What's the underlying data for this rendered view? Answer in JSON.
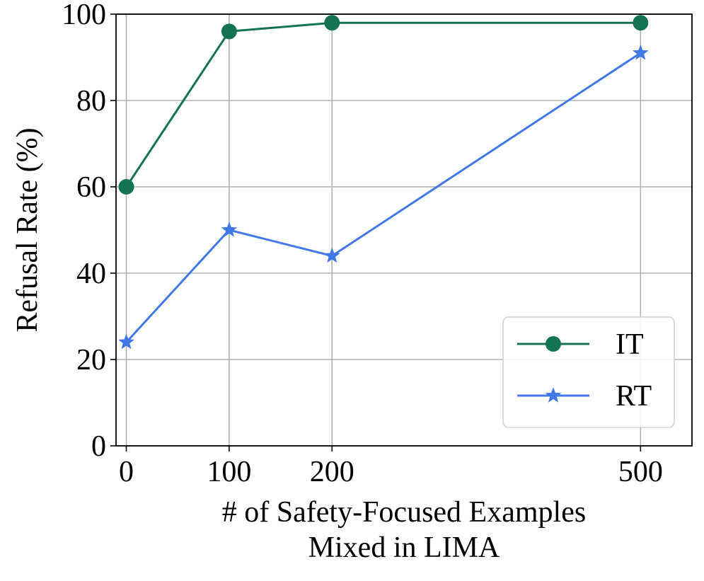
{
  "chart_data": {
    "type": "line",
    "xlabel": "# of Safety-Focused Examples Mixed in LIMA",
    "xlabel_lines": [
      "# of Safety-Focused Examples",
      "Mixed in LIMA"
    ],
    "ylabel": "Refusal Rate (%)",
    "x": [
      0,
      100,
      200,
      500
    ],
    "xlim": [
      -10,
      550
    ],
    "ylim": [
      0,
      100
    ],
    "x_ticks": [
      "0",
      "100",
      "200",
      "500"
    ],
    "y_ticks": [
      "0",
      "20",
      "40",
      "60",
      "80",
      "100"
    ],
    "grid": true,
    "legend_position": "lower-right",
    "series": [
      {
        "name": "IT",
        "marker": "circle",
        "color": "#137352",
        "values": [
          60,
          96,
          98,
          98
        ]
      },
      {
        "name": "RT",
        "marker": "star",
        "color": "#4178e8",
        "values": [
          24,
          50,
          44,
          91
        ]
      }
    ]
  }
}
